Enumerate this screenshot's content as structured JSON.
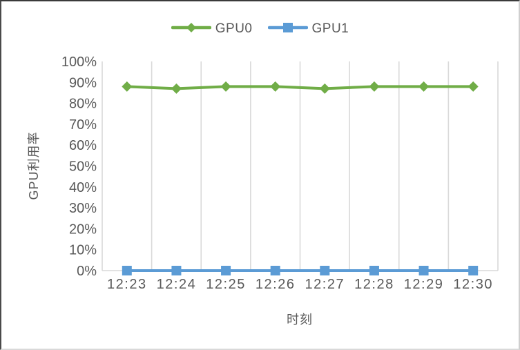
{
  "chart_data": {
    "type": "line",
    "title": "",
    "xlabel": "时刻",
    "ylabel": "GPU利用率",
    "categories": [
      "12:23",
      "12:24",
      "12:25",
      "12:26",
      "12:27",
      "12:28",
      "12:29",
      "12:30"
    ],
    "series": [
      {
        "name": "GPU0",
        "values": [
          88,
          87,
          88,
          88,
          87,
          88,
          88,
          88
        ],
        "color": "#70AD47",
        "marker": "diamond"
      },
      {
        "name": "GPU1",
        "values": [
          0,
          0,
          0,
          0,
          0,
          0,
          0,
          0
        ],
        "color": "#5B9BD5",
        "marker": "square"
      }
    ],
    "ylim": [
      0,
      100
    ],
    "ytick_step": 10,
    "ytick_suffix": "%",
    "grid": "vertical-only",
    "legend_position": "top-center",
    "colors": {
      "gridline": "#D9D9D9",
      "axis_line": "#D9D9D9",
      "tick_text": "#595959",
      "label_text": "#595959",
      "background": "#FFFFFF"
    }
  }
}
